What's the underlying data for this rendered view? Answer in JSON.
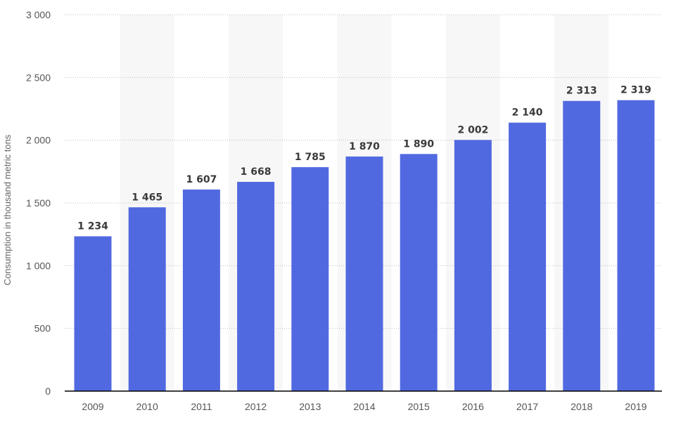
{
  "chart_data": {
    "type": "bar",
    "title": "",
    "xlabel": "",
    "ylabel": "Consumption in thousand metric tons",
    "categories": [
      "2009",
      "2010",
      "2011",
      "2012",
      "2013",
      "2014",
      "2015",
      "2016",
      "2017",
      "2018",
      "2019"
    ],
    "values": [
      1234,
      1465,
      1607,
      1668,
      1785,
      1870,
      1890,
      2002,
      2140,
      2313,
      2319
    ],
    "value_labels": [
      "1 234",
      "1 465",
      "1 607",
      "1 668",
      "1 785",
      "1 870",
      "1 890",
      "2 002",
      "2 140",
      "2 313",
      "2 319"
    ],
    "ylim": [
      0,
      3000
    ],
    "yticks": [
      0,
      500,
      1000,
      1500,
      2000,
      2500,
      3000
    ],
    "ytick_labels": [
      "0",
      "500",
      "1 000",
      "1 500",
      "2 000",
      "2 500",
      "3 000"
    ],
    "grid": true,
    "bar_color": "#5169e0",
    "alternating_band_color": "#f7f7f7"
  }
}
